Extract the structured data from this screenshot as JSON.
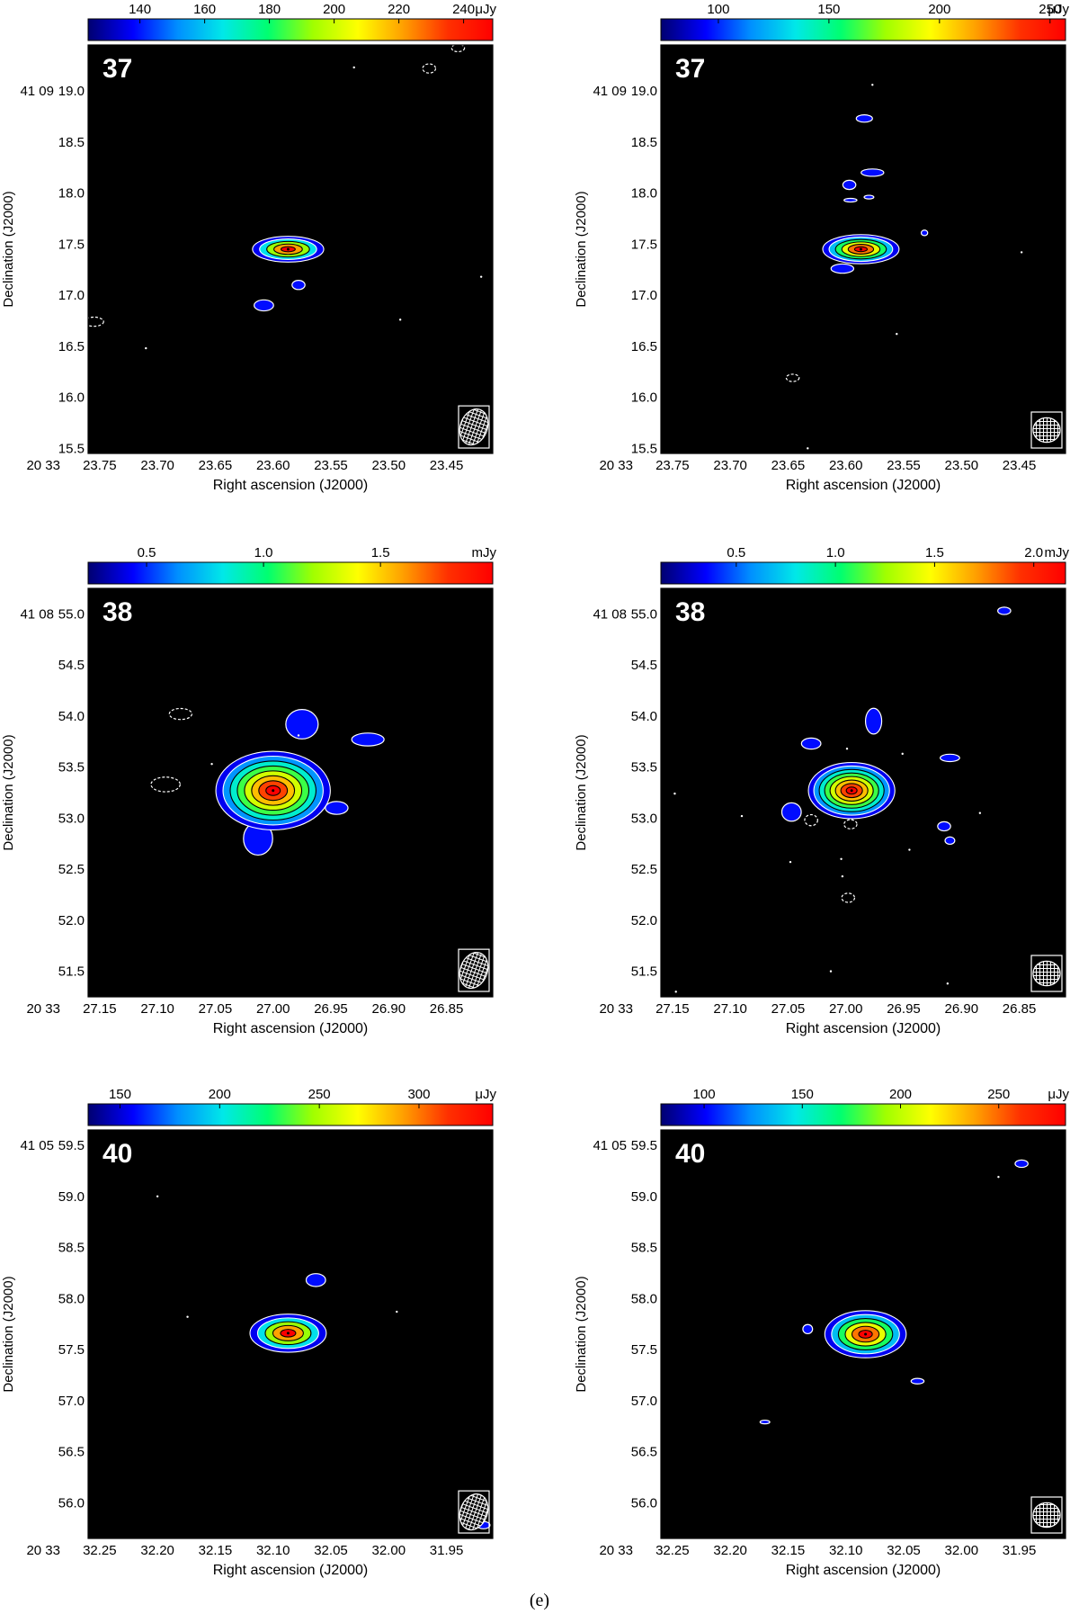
{
  "caption": "(e)",
  "colormap": {
    "stops": [
      "#000070",
      "#0000ff",
      "#0090ff",
      "#00e8e8",
      "#00ff70",
      "#a0ff00",
      "#ffff00",
      "#ffa000",
      "#ff3000",
      "#ff0000"
    ]
  },
  "colors": {
    "map_background": "#000000",
    "contour": "#ffffff",
    "contour_inner": "#000000"
  },
  "chart_data": [
    {
      "type": "heatmap",
      "source_label": "37",
      "xlabel": "Right ascension (J2000)",
      "ylabel": "Declination (J2000)",
      "x_prefix": "20 33",
      "x_ticks": [
        "23.75",
        "23.70",
        "23.65",
        "23.60",
        "23.55",
        "23.50",
        "23.45"
      ],
      "xlim": [
        23.76,
        23.41
      ],
      "y_prefix": "41 09",
      "y_ticks": [
        "19.0",
        "18.5",
        "18.0",
        "17.5",
        "17.0",
        "16.5",
        "16.0",
        "15.5"
      ],
      "ylim": [
        15.45,
        19.45
      ],
      "colorbar": {
        "ticks": [
          "140",
          "160",
          "180",
          "200",
          "220",
          "240"
        ],
        "tick_values": [
          140,
          160,
          180,
          200,
          220,
          240
        ],
        "range": [
          124,
          249
        ],
        "unit": "μJy"
      },
      "peak": {
        "x": 23.587,
        "y": 17.45,
        "size": [
          0.028,
          0.23
        ],
        "levels": 5
      },
      "islands": [
        {
          "x": 23.608,
          "y": 16.9,
          "w": 0.006,
          "h": 0.06
        },
        {
          "x": 23.578,
          "y": 17.1,
          "w": 0.004,
          "h": 0.05,
          "dashed": false
        },
        {
          "x": 23.755,
          "y": 16.74,
          "w": 0.006,
          "h": 0.05,
          "dashed": true
        },
        {
          "x": 23.465,
          "y": 19.22,
          "w": 0.004,
          "h": 0.05,
          "dashed": true
        },
        {
          "x": 23.44,
          "y": 19.42,
          "w": 0.004,
          "h": 0.04,
          "dashed": true
        }
      ],
      "specks": [
        [
          23.71,
          16.48
        ],
        [
          23.53,
          19.23
        ],
        [
          23.49,
          16.76
        ],
        [
          23.42,
          17.18
        ]
      ],
      "beam": {
        "w": 0.018,
        "h": 0.3,
        "angle": 20
      }
    },
    {
      "type": "heatmap",
      "source_label": "37",
      "xlabel": "Right ascension (J2000)",
      "ylabel": "Declination (J2000)",
      "x_prefix": "20 33",
      "x_ticks": [
        "23.75",
        "23.70",
        "23.65",
        "23.60",
        "23.55",
        "23.50",
        "23.45"
      ],
      "xlim": [
        23.76,
        23.41
      ],
      "y_prefix": "41 09",
      "y_ticks": [
        "19.0",
        "18.5",
        "18.0",
        "17.5",
        "17.0",
        "16.5",
        "16.0",
        "15.5"
      ],
      "ylim": [
        15.45,
        19.45
      ],
      "colorbar": {
        "ticks": [
          "100",
          "150",
          "200",
          "250"
        ],
        "tick_values": [
          100,
          150,
          200,
          250
        ],
        "range": [
          74,
          257
        ],
        "unit": "μJy"
      },
      "peak": {
        "x": 23.587,
        "y": 17.45,
        "size": [
          0.03,
          0.26
        ],
        "levels": 6
      },
      "islands": [
        {
          "x": 23.603,
          "y": 17.26,
          "w": 0.007,
          "h": 0.05
        },
        {
          "x": 23.584,
          "y": 18.73,
          "w": 0.005,
          "h": 0.04
        },
        {
          "x": 23.577,
          "y": 18.2,
          "w": 0.007,
          "h": 0.04
        },
        {
          "x": 23.597,
          "y": 18.08,
          "w": 0.004,
          "h": 0.05
        },
        {
          "x": 23.596,
          "y": 17.93,
          "w": 0.004,
          "h": 0.02
        },
        {
          "x": 23.58,
          "y": 17.96,
          "w": 0.003,
          "h": 0.02
        },
        {
          "x": 23.532,
          "y": 17.61,
          "w": 0.002,
          "h": 0.03
        },
        {
          "x": 23.646,
          "y": 16.19,
          "w": 0.004,
          "h": 0.04,
          "dashed": true
        }
      ],
      "specks": [
        [
          23.577,
          19.06
        ],
        [
          23.556,
          16.62
        ],
        [
          23.448,
          17.42
        ],
        [
          23.633,
          15.5
        ]
      ],
      "beam": {
        "w": 0.018,
        "h": 0.2,
        "angle": 0
      }
    },
    {
      "type": "heatmap",
      "source_label": "38",
      "xlabel": "Right ascension (J2000)",
      "ylabel": "Declination (J2000)",
      "x_prefix": "20 33",
      "x_ticks": [
        "27.15",
        "27.10",
        "27.05",
        "27.00",
        "26.95",
        "26.90",
        "26.85"
      ],
      "xlim": [
        27.16,
        26.81
      ],
      "y_prefix": "41 08",
      "y_ticks": [
        "55.0",
        "54.5",
        "54.0",
        "53.5",
        "53.0",
        "52.5",
        "52.0",
        "51.5"
      ],
      "ylim": [
        51.25,
        55.25
      ],
      "colorbar": {
        "ticks": [
          "0.5",
          "1.0",
          "1.5"
        ],
        "tick_values": [
          0.5,
          1.0,
          1.5
        ],
        "range": [
          0.25,
          1.98
        ],
        "unit": "mJy"
      },
      "peak": {
        "x": 27.0,
        "y": 53.27,
        "size": [
          0.045,
          0.7
        ],
        "levels": 8
      },
      "islands": [
        {
          "x": 27.013,
          "y": 52.8,
          "w": 0.009,
          "h": 0.18
        },
        {
          "x": 26.975,
          "y": 53.92,
          "w": 0.01,
          "h": 0.16
        },
        {
          "x": 26.918,
          "y": 53.77,
          "w": 0.01,
          "h": 0.07
        },
        {
          "x": 26.945,
          "y": 53.1,
          "w": 0.007,
          "h": 0.07
        },
        {
          "x": 27.08,
          "y": 54.02,
          "w": 0.007,
          "h": 0.06,
          "dashed": true
        },
        {
          "x": 27.093,
          "y": 53.33,
          "w": 0.009,
          "h": 0.08,
          "dashed": true
        }
      ],
      "specks": [
        [
          27.053,
          53.53
        ],
        [
          26.978,
          53.81
        ]
      ],
      "beam": {
        "w": 0.018,
        "h": 0.3,
        "angle": 20
      }
    },
    {
      "type": "heatmap",
      "source_label": "38",
      "xlabel": "Right ascension (J2000)",
      "ylabel": "Declination (J2000)",
      "x_prefix": "20 33",
      "x_ticks": [
        "27.15",
        "27.10",
        "27.05",
        "27.00",
        "26.95",
        "26.90",
        "26.85"
      ],
      "xlim": [
        27.16,
        26.81
      ],
      "y_prefix": "41 08",
      "y_ticks": [
        "55.0",
        "54.5",
        "54.0",
        "53.5",
        "53.0",
        "52.5",
        "52.0",
        "51.5"
      ],
      "ylim": [
        51.25,
        55.25
      ],
      "colorbar": {
        "ticks": [
          "0.5",
          "1.0",
          "1.5",
          "2.0"
        ],
        "tick_values": [
          0.5,
          1.0,
          1.5,
          2.0
        ],
        "range": [
          0.12,
          2.16
        ],
        "unit": "mJy"
      },
      "peak": {
        "x": 26.995,
        "y": 53.27,
        "size": [
          0.034,
          0.5
        ],
        "levels": 8
      },
      "islands": [
        {
          "x": 27.03,
          "y": 53.73,
          "w": 0.006,
          "h": 0.06
        },
        {
          "x": 26.976,
          "y": 53.95,
          "w": 0.005,
          "h": 0.14
        },
        {
          "x": 26.91,
          "y": 53.59,
          "w": 0.006,
          "h": 0.04
        },
        {
          "x": 27.047,
          "y": 53.06,
          "w": 0.006,
          "h": 0.1
        },
        {
          "x": 26.915,
          "y": 52.92,
          "w": 0.004,
          "h": 0.05
        },
        {
          "x": 26.91,
          "y": 52.78,
          "w": 0.003,
          "h": 0.04
        },
        {
          "x": 26.863,
          "y": 55.03,
          "w": 0.004,
          "h": 0.04
        },
        {
          "x": 27.03,
          "y": 52.98,
          "w": 0.004,
          "h": 0.06,
          "dashed": true
        },
        {
          "x": 26.996,
          "y": 52.94,
          "w": 0.004,
          "h": 0.05,
          "dashed": true
        },
        {
          "x": 26.998,
          "y": 52.22,
          "w": 0.004,
          "h": 0.05,
          "dashed": true
        }
      ],
      "specks": [
        [
          27.148,
          53.24
        ],
        [
          27.09,
          53.02
        ],
        [
          26.951,
          53.63
        ],
        [
          26.945,
          52.69
        ],
        [
          26.884,
          53.05
        ],
        [
          27.003,
          52.43
        ],
        [
          27.004,
          52.6
        ],
        [
          27.048,
          52.57
        ],
        [
          27.013,
          51.5
        ],
        [
          26.912,
          51.38
        ],
        [
          27.147,
          51.3
        ],
        [
          26.999,
          53.68
        ]
      ],
      "beam": {
        "w": 0.018,
        "h": 0.2,
        "angle": 0
      }
    },
    {
      "type": "heatmap",
      "source_label": "40",
      "xlabel": "Right ascension (J2000)",
      "ylabel": "Declination (J2000)",
      "x_prefix": "20 33",
      "x_ticks": [
        "32.25",
        "32.20",
        "32.15",
        "32.10",
        "32.05",
        "32.00",
        "31.95"
      ],
      "xlim": [
        32.26,
        31.91
      ],
      "y_prefix": "41 05",
      "y_ticks": [
        "59.5",
        "59.0",
        "58.5",
        "58.0",
        "57.5",
        "57.0",
        "56.5",
        "56.0"
      ],
      "ylim": [
        55.65,
        59.65
      ],
      "colorbar": {
        "ticks": [
          "150",
          "200",
          "250",
          "300"
        ],
        "tick_values": [
          150,
          200,
          250,
          300
        ],
        "range": [
          134,
          337
        ],
        "unit": "μJy"
      },
      "peak": {
        "x": 32.087,
        "y": 57.66,
        "size": [
          0.03,
          0.34
        ],
        "levels": 5
      },
      "islands": [
        {
          "x": 32.063,
          "y": 58.18,
          "w": 0.006,
          "h": 0.07
        },
        {
          "x": 31.918,
          "y": 55.78,
          "w": 0.004,
          "h": 0.04
        }
      ],
      "specks": [
        [
          32.2,
          59.0
        ],
        [
          32.174,
          57.82
        ],
        [
          31.993,
          57.87
        ]
      ],
      "beam": {
        "w": 0.018,
        "h": 0.3,
        "angle": 20
      }
    },
    {
      "type": "heatmap",
      "source_label": "40",
      "xlabel": "Right ascension (J2000)",
      "ylabel": "Declination (J2000)",
      "x_prefix": "20 33",
      "x_ticks": [
        "32.25",
        "32.20",
        "32.15",
        "32.10",
        "32.05",
        "32.00",
        "31.95"
      ],
      "xlim": [
        32.26,
        31.91
      ],
      "y_prefix": "41 05",
      "y_ticks": [
        "59.5",
        "59.0",
        "58.5",
        "58.0",
        "57.5",
        "57.0",
        "56.5",
        "56.0"
      ],
      "ylim": [
        55.65,
        59.65
      ],
      "colorbar": {
        "ticks": [
          "100",
          "150",
          "200",
          "250"
        ],
        "tick_values": [
          100,
          150,
          200,
          250
        ],
        "range": [
          78,
          284
        ],
        "unit": "μJy"
      },
      "peak": {
        "x": 32.083,
        "y": 57.65,
        "size": [
          0.032,
          0.42
        ],
        "levels": 6
      },
      "islands": [
        {
          "x": 32.133,
          "y": 57.7,
          "w": 0.003,
          "h": 0.05
        },
        {
          "x": 32.038,
          "y": 57.19,
          "w": 0.004,
          "h": 0.03
        },
        {
          "x": 31.948,
          "y": 59.32,
          "w": 0.004,
          "h": 0.04
        },
        {
          "x": 32.17,
          "y": 56.79,
          "w": 0.003,
          "h": 0.02
        }
      ],
      "specks": [
        [
          31.968,
          59.19
        ]
      ],
      "beam": {
        "w": 0.018,
        "h": 0.2,
        "angle": 0
      }
    }
  ]
}
